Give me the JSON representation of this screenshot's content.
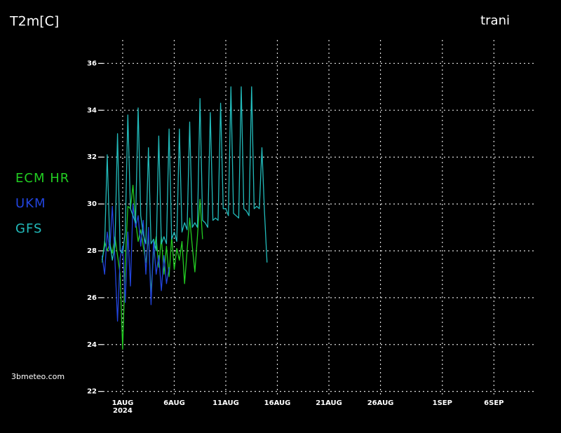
{
  "chart_data": {
    "type": "line",
    "title": "T2m[C]",
    "subtitle": "trani",
    "source": "3bmeteo.com",
    "x": [
      "2024-07-30T00:00",
      "2024-07-30T06:00",
      "2024-07-30T12:00",
      "2024-07-30T18:00",
      "2024-07-31T00:00",
      "2024-07-31T06:00",
      "2024-07-31T12:00",
      "2024-07-31T18:00",
      "2024-08-01T00:00",
      "2024-08-01T06:00",
      "2024-08-01T12:00",
      "2024-08-01T18:00",
      "2024-08-02T00:00",
      "2024-08-02T06:00",
      "2024-08-02T12:00",
      "2024-08-02T18:00",
      "2024-08-03T00:00",
      "2024-08-03T06:00",
      "2024-08-03T12:00",
      "2024-08-03T18:00",
      "2024-08-04T00:00",
      "2024-08-04T06:00",
      "2024-08-04T12:00",
      "2024-08-04T18:00",
      "2024-08-05T00:00",
      "2024-08-05T06:00",
      "2024-08-05T12:00",
      "2024-08-05T18:00",
      "2024-08-06T00:00",
      "2024-08-06T06:00",
      "2024-08-06T12:00",
      "2024-08-06T18:00",
      "2024-08-07T00:00",
      "2024-08-07T06:00",
      "2024-08-07T12:00",
      "2024-08-07T18:00",
      "2024-08-08T00:00",
      "2024-08-08T06:00",
      "2024-08-08T12:00",
      "2024-08-08T18:00",
      "2024-08-09T00:00",
      "2024-08-09T06:00",
      "2024-08-09T12:00",
      "2024-08-09T18:00",
      "2024-08-10T00:00",
      "2024-08-10T06:00",
      "2024-08-10T12:00",
      "2024-08-10T18:00",
      "2024-08-11T00:00",
      "2024-08-11T06:00",
      "2024-08-11T12:00",
      "2024-08-11T18:00",
      "2024-08-12T00:00",
      "2024-08-12T06:00",
      "2024-08-12T12:00",
      "2024-08-12T18:00",
      "2024-08-13T00:00",
      "2024-08-13T06:00",
      "2024-08-13T12:00",
      "2024-08-13T18:00",
      "2024-08-14T00:00",
      "2024-08-14T06:00",
      "2024-08-14T12:00",
      "2024-08-14T18:00",
      "2024-08-15T00:00"
    ],
    "series": [
      {
        "name": "ECM HR",
        "color": "#22cc22",
        "values": [
          27.5,
          28.4,
          28.0,
          28.3,
          27.9,
          28.6,
          27.8,
          27.0,
          23.8,
          27.5,
          29.9,
          29.8,
          30.8,
          29.3,
          28.4,
          28.9,
          28.2,
          27.5,
          28.6,
          26.2,
          27.9,
          28.6,
          27.3,
          28.6,
          27.0,
          28.2,
          26.9,
          28.6,
          27.2,
          28.1,
          27.6,
          28.4,
          26.6,
          28.0,
          29.4,
          28.2,
          27.1,
          28.6,
          30.2,
          28.5,
          null,
          null,
          null,
          null,
          null,
          null,
          null,
          null,
          null,
          null,
          null,
          null,
          null,
          null,
          null,
          null,
          null,
          null,
          null,
          null,
          null,
          null,
          null,
          null,
          null
        ]
      },
      {
        "name": "UKM",
        "color": "#2244dd",
        "values": [
          27.8,
          27.0,
          28.8,
          28.0,
          29.9,
          27.6,
          25.0,
          27.7,
          28.2,
          25.8,
          28.8,
          26.5,
          30.0,
          29.0,
          29.5,
          28.2,
          29.3,
          27.0,
          29.0,
          25.7,
          28.4,
          27.0,
          27.8,
          26.3,
          27.8,
          26.6,
          27.3,
          null,
          null,
          null,
          null,
          null,
          null,
          null,
          null,
          null,
          null,
          null,
          null,
          null,
          null,
          null,
          null,
          null,
          null,
          null,
          null,
          null,
          null,
          null,
          null,
          null,
          null,
          null,
          null,
          null,
          null,
          null,
          null,
          null,
          null,
          null,
          null,
          null,
          null
        ]
      },
      {
        "name": "GFS",
        "color": "#22bbbb",
        "values": [
          27.6,
          28.2,
          32.1,
          28.4,
          27.6,
          28.2,
          33.0,
          28.0,
          27.9,
          28.8,
          33.8,
          29.8,
          29.5,
          29.2,
          34.1,
          29.5,
          28.7,
          28.3,
          32.4,
          28.3,
          28.5,
          28.0,
          32.9,
          28.3,
          28.6,
          28.3,
          33.2,
          28.5,
          28.8,
          28.4,
          33.2,
          28.8,
          29.2,
          28.9,
          33.5,
          29.0,
          29.2,
          29.0,
          34.5,
          29.3,
          29.2,
          29.0,
          33.9,
          29.3,
          29.4,
          29.3,
          34.3,
          29.8,
          29.8,
          29.5,
          35.0,
          29.6,
          29.5,
          29.4,
          35.0,
          29.8,
          29.7,
          29.5,
          35.0,
          29.8,
          29.9,
          29.8,
          32.4,
          29.7,
          27.5
        ]
      }
    ],
    "xlim": [
      "2024-07-29T15:00",
      "2024-09-10T03:00"
    ],
    "xticks": [
      {
        "value": "2024-08-01T00:00",
        "label": "1AUG 2024"
      },
      {
        "value": "2024-08-06T00:00",
        "label": "6AUG"
      },
      {
        "value": "2024-08-11T00:00",
        "label": "11AUG"
      },
      {
        "value": "2024-08-16T00:00",
        "label": "16AUG"
      },
      {
        "value": "2024-08-21T00:00",
        "label": "21AUG"
      },
      {
        "value": "2024-08-26T00:00",
        "label": "26AUG"
      },
      {
        "value": "2024-09-01T00:00",
        "label": "1SEP"
      },
      {
        "value": "2024-09-06T00:00",
        "label": "6SEP"
      }
    ],
    "ylim": [
      21.9,
      37.0
    ],
    "yticks": [
      22,
      24,
      26,
      28,
      30,
      32,
      34,
      36
    ],
    "grid": true,
    "legend": "left"
  }
}
